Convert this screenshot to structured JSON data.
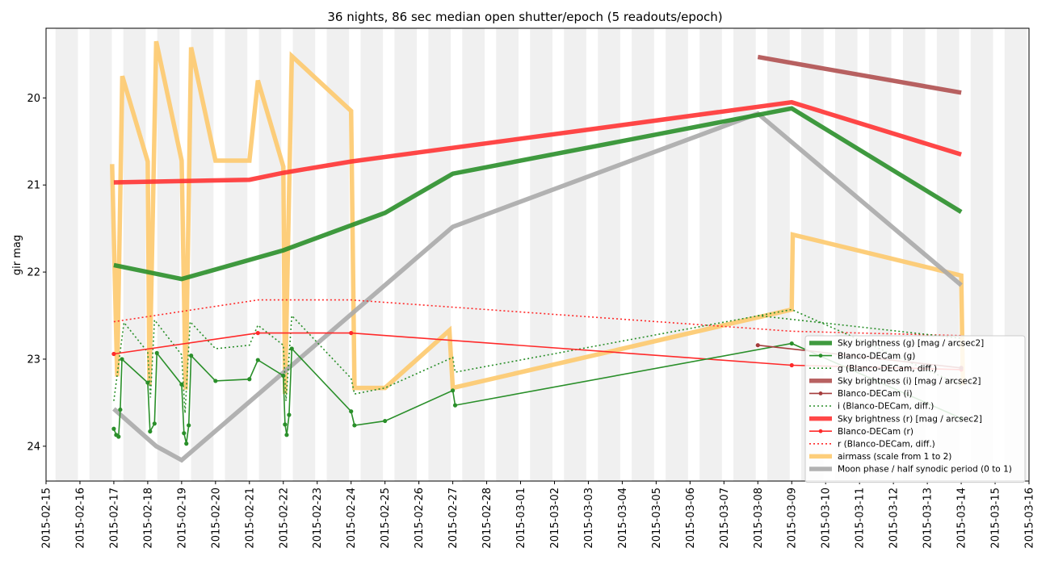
{
  "chart_data": {
    "type": "line",
    "title": "36 nights, 86 sec median open shutter/epoch (5 readouts/epoch)",
    "xlabel": "",
    "ylabel": "gir mag",
    "xlim": [
      "2015-02-15",
      "2015-03-16"
    ],
    "ylim": [
      24.4,
      19.2
    ],
    "y_inverted": true,
    "yticks": [
      20,
      21,
      22,
      23,
      24
    ],
    "xticks": [
      "2015-02-15",
      "2015-02-16",
      "2015-02-17",
      "2015-02-18",
      "2015-02-19",
      "2015-02-20",
      "2015-02-21",
      "2015-02-22",
      "2015-02-23",
      "2015-02-24",
      "2015-02-25",
      "2015-02-26",
      "2015-02-27",
      "2015-02-28",
      "2015-03-01",
      "2015-03-02",
      "2015-03-03",
      "2015-03-04",
      "2015-03-05",
      "2015-03-06",
      "2015-03-07",
      "2015-03-08",
      "2015-03-09",
      "2015-03-10",
      "2015-03-11",
      "2015-03-12",
      "2015-03-13",
      "2015-03-14",
      "2015-03-15",
      "2015-03-16"
    ],
    "night_shading": "alternating light-gray daily bands",
    "legend_position": "lower-right",
    "grid": false,
    "series": [
      {
        "name": "Sky brightness (g) [mag / arcsec2]",
        "color": "#2a8f2a",
        "style": "thick",
        "points": [
          [
            "2015-02-17",
            21.92
          ],
          [
            "2015-02-19",
            22.08
          ],
          [
            "2015-02-22",
            21.75
          ],
          [
            "2015-02-25",
            21.32
          ],
          [
            "2015-02-27",
            20.87
          ],
          [
            "2015-03-09",
            20.12
          ],
          [
            "2015-03-14",
            21.31
          ]
        ]
      },
      {
        "name": "Blanco-DECam (g)",
        "color": "#2a8f2a",
        "style": "thin-dots",
        "points": [
          [
            "2015-02-17",
            23.8
          ],
          [
            "2015-02-17.07",
            23.87
          ],
          [
            "2015-02-17.14",
            23.89
          ],
          [
            "2015-02-17.19",
            23.58
          ],
          [
            "2015-02-17.24",
            23.0
          ],
          [
            "2015-02-18",
            23.27
          ],
          [
            "2015-02-18.07",
            23.83
          ],
          [
            "2015-02-18.2",
            23.74
          ],
          [
            "2015-02-18.27",
            22.93
          ],
          [
            "2015-02-19",
            23.29
          ],
          [
            "2015-02-19.07",
            23.85
          ],
          [
            "2015-02-19.14",
            23.97
          ],
          [
            "2015-02-19.21",
            23.76
          ],
          [
            "2015-02-19.28",
            22.96
          ],
          [
            "2015-02-20",
            23.25
          ],
          [
            "2015-02-21",
            23.23
          ],
          [
            "2015-02-21.25",
            23.01
          ],
          [
            "2015-02-22",
            23.19
          ],
          [
            "2015-02-22.05",
            23.75
          ],
          [
            "2015-02-22.1",
            23.87
          ],
          [
            "2015-02-22.17",
            23.64
          ],
          [
            "2015-02-22.25",
            22.88
          ],
          [
            "2015-02-24",
            23.6
          ],
          [
            "2015-02-24.1",
            23.76
          ],
          [
            "2015-02-25",
            23.71
          ],
          [
            "2015-02-27",
            23.36
          ],
          [
            "2015-02-27.07",
            23.53
          ],
          [
            "2015-03-09",
            22.82
          ],
          [
            "2015-03-14",
            23.68
          ]
        ]
      },
      {
        "name": "g (Blanco-DECam, diff.)",
        "color": "#2a8f2a",
        "style": "dotted",
        "points": [
          [
            "2015-02-17",
            23.48
          ],
          [
            "2015-02-17.3",
            22.58
          ],
          [
            "2015-02-18",
            22.92
          ],
          [
            "2015-02-18.08",
            23.44
          ],
          [
            "2015-02-18.2",
            22.55
          ],
          [
            "2015-02-19",
            22.95
          ],
          [
            "2015-02-19.1",
            23.62
          ],
          [
            "2015-02-19.25",
            22.57
          ],
          [
            "2015-02-20",
            22.88
          ],
          [
            "2015-02-21",
            22.84
          ],
          [
            "2015-02-21.25",
            22.61
          ],
          [
            "2015-02-22",
            22.84
          ],
          [
            "2015-02-22.08",
            23.48
          ],
          [
            "2015-02-22.25",
            22.5
          ],
          [
            "2015-02-24",
            23.22
          ],
          [
            "2015-02-24.1",
            23.4
          ],
          [
            "2015-02-25",
            23.33
          ],
          [
            "2015-02-27",
            22.98
          ],
          [
            "2015-02-27.07",
            23.15
          ],
          [
            "2015-03-09",
            22.43
          ],
          [
            "2015-03-14",
            23.3
          ]
        ]
      },
      {
        "name": "Sky brightness (i) [mag / arcsec2]",
        "color": "#b05050",
        "style": "thick",
        "points": [
          [
            "2015-03-08",
            19.53
          ],
          [
            "2015-03-14",
            19.94
          ]
        ]
      },
      {
        "name": "Blanco-DECam (i)",
        "color": "#a53c3c",
        "style": "thin-dots",
        "points": [
          [
            "2015-03-08",
            22.84
          ],
          [
            "2015-03-14",
            23.1
          ]
        ]
      },
      {
        "name": "i (Blanco-DECam, diff.)",
        "color": "#2a8f2a",
        "style": "dotted",
        "points": [
          [
            "2015-03-08",
            22.5
          ],
          [
            "2015-03-14",
            22.76
          ]
        ]
      },
      {
        "name": "Sky brightness (r) [mag / arcsec2]",
        "color": "#ff3333",
        "style": "thick",
        "points": [
          [
            "2015-02-17",
            20.97
          ],
          [
            "2015-02-21",
            20.94
          ],
          [
            "2015-02-22",
            20.86
          ],
          [
            "2015-02-24",
            20.73
          ],
          [
            "2015-03-09",
            20.05
          ],
          [
            "2015-03-14",
            20.65
          ]
        ]
      },
      {
        "name": "Blanco-DECam (r)",
        "color": "#ff2a2a",
        "style": "thin-dots",
        "points": [
          [
            "2015-02-17",
            22.94
          ],
          [
            "2015-02-21.25",
            22.7
          ],
          [
            "2015-02-24",
            22.7
          ],
          [
            "2015-03-09",
            23.07
          ],
          [
            "2015-03-14",
            23.12
          ]
        ]
      },
      {
        "name": "r (Blanco-DECam, diff.)",
        "color": "#ff2a2a",
        "style": "dotted",
        "points": [
          [
            "2015-02-17",
            22.57
          ],
          [
            "2015-02-21.25",
            22.32
          ],
          [
            "2015-02-24",
            22.32
          ],
          [
            "2015-03-09",
            22.68
          ],
          [
            "2015-03-14",
            22.73
          ]
        ]
      },
      {
        "name": "airmass (scale from 1 to 2)",
        "color": "#fdc96d",
        "style": "thick",
        "points": [
          [
            "2015-02-16.95",
            20.76
          ],
          [
            "2015-02-17.1",
            23.2
          ],
          [
            "2015-02-17.25",
            19.75
          ],
          [
            "2015-02-18",
            20.73
          ],
          [
            "2015-02-18.05",
            23.3
          ],
          [
            "2015-02-18.25",
            19.35
          ],
          [
            "2015-02-19",
            20.72
          ],
          [
            "2015-02-19.12",
            23.35
          ],
          [
            "2015-02-19.28",
            19.42
          ],
          [
            "2015-02-20",
            20.72
          ],
          [
            "2015-02-21",
            20.72
          ],
          [
            "2015-02-21.25",
            19.8
          ],
          [
            "2015-02-22",
            20.79
          ],
          [
            "2015-02-22.05",
            23.4
          ],
          [
            "2015-02-22.25",
            19.52
          ],
          [
            "2015-02-24",
            20.15
          ],
          [
            "2015-02-24.1",
            23.33
          ],
          [
            "2015-02-25",
            23.33
          ],
          [
            "2015-02-26.9",
            22.67
          ],
          [
            "2015-02-27",
            23.33
          ],
          [
            "2015-03-09",
            22.43
          ],
          [
            "2015-03-09.03",
            21.57
          ],
          [
            "2015-03-14",
            22.04
          ],
          [
            "2015-03-14.05",
            23.3
          ]
        ]
      },
      {
        "name": "Moon phase / half synodic period (0 to 1)",
        "color": "#aaaaaa",
        "style": "thick",
        "points": [
          [
            "2015-02-17",
            23.57
          ],
          [
            "2015-02-18.25",
            24.0
          ],
          [
            "2015-02-19",
            24.16
          ],
          [
            "2015-02-27",
            21.48
          ],
          [
            "2015-03-08",
            20.18
          ],
          [
            "2015-03-14",
            22.15
          ]
        ]
      }
    ]
  }
}
